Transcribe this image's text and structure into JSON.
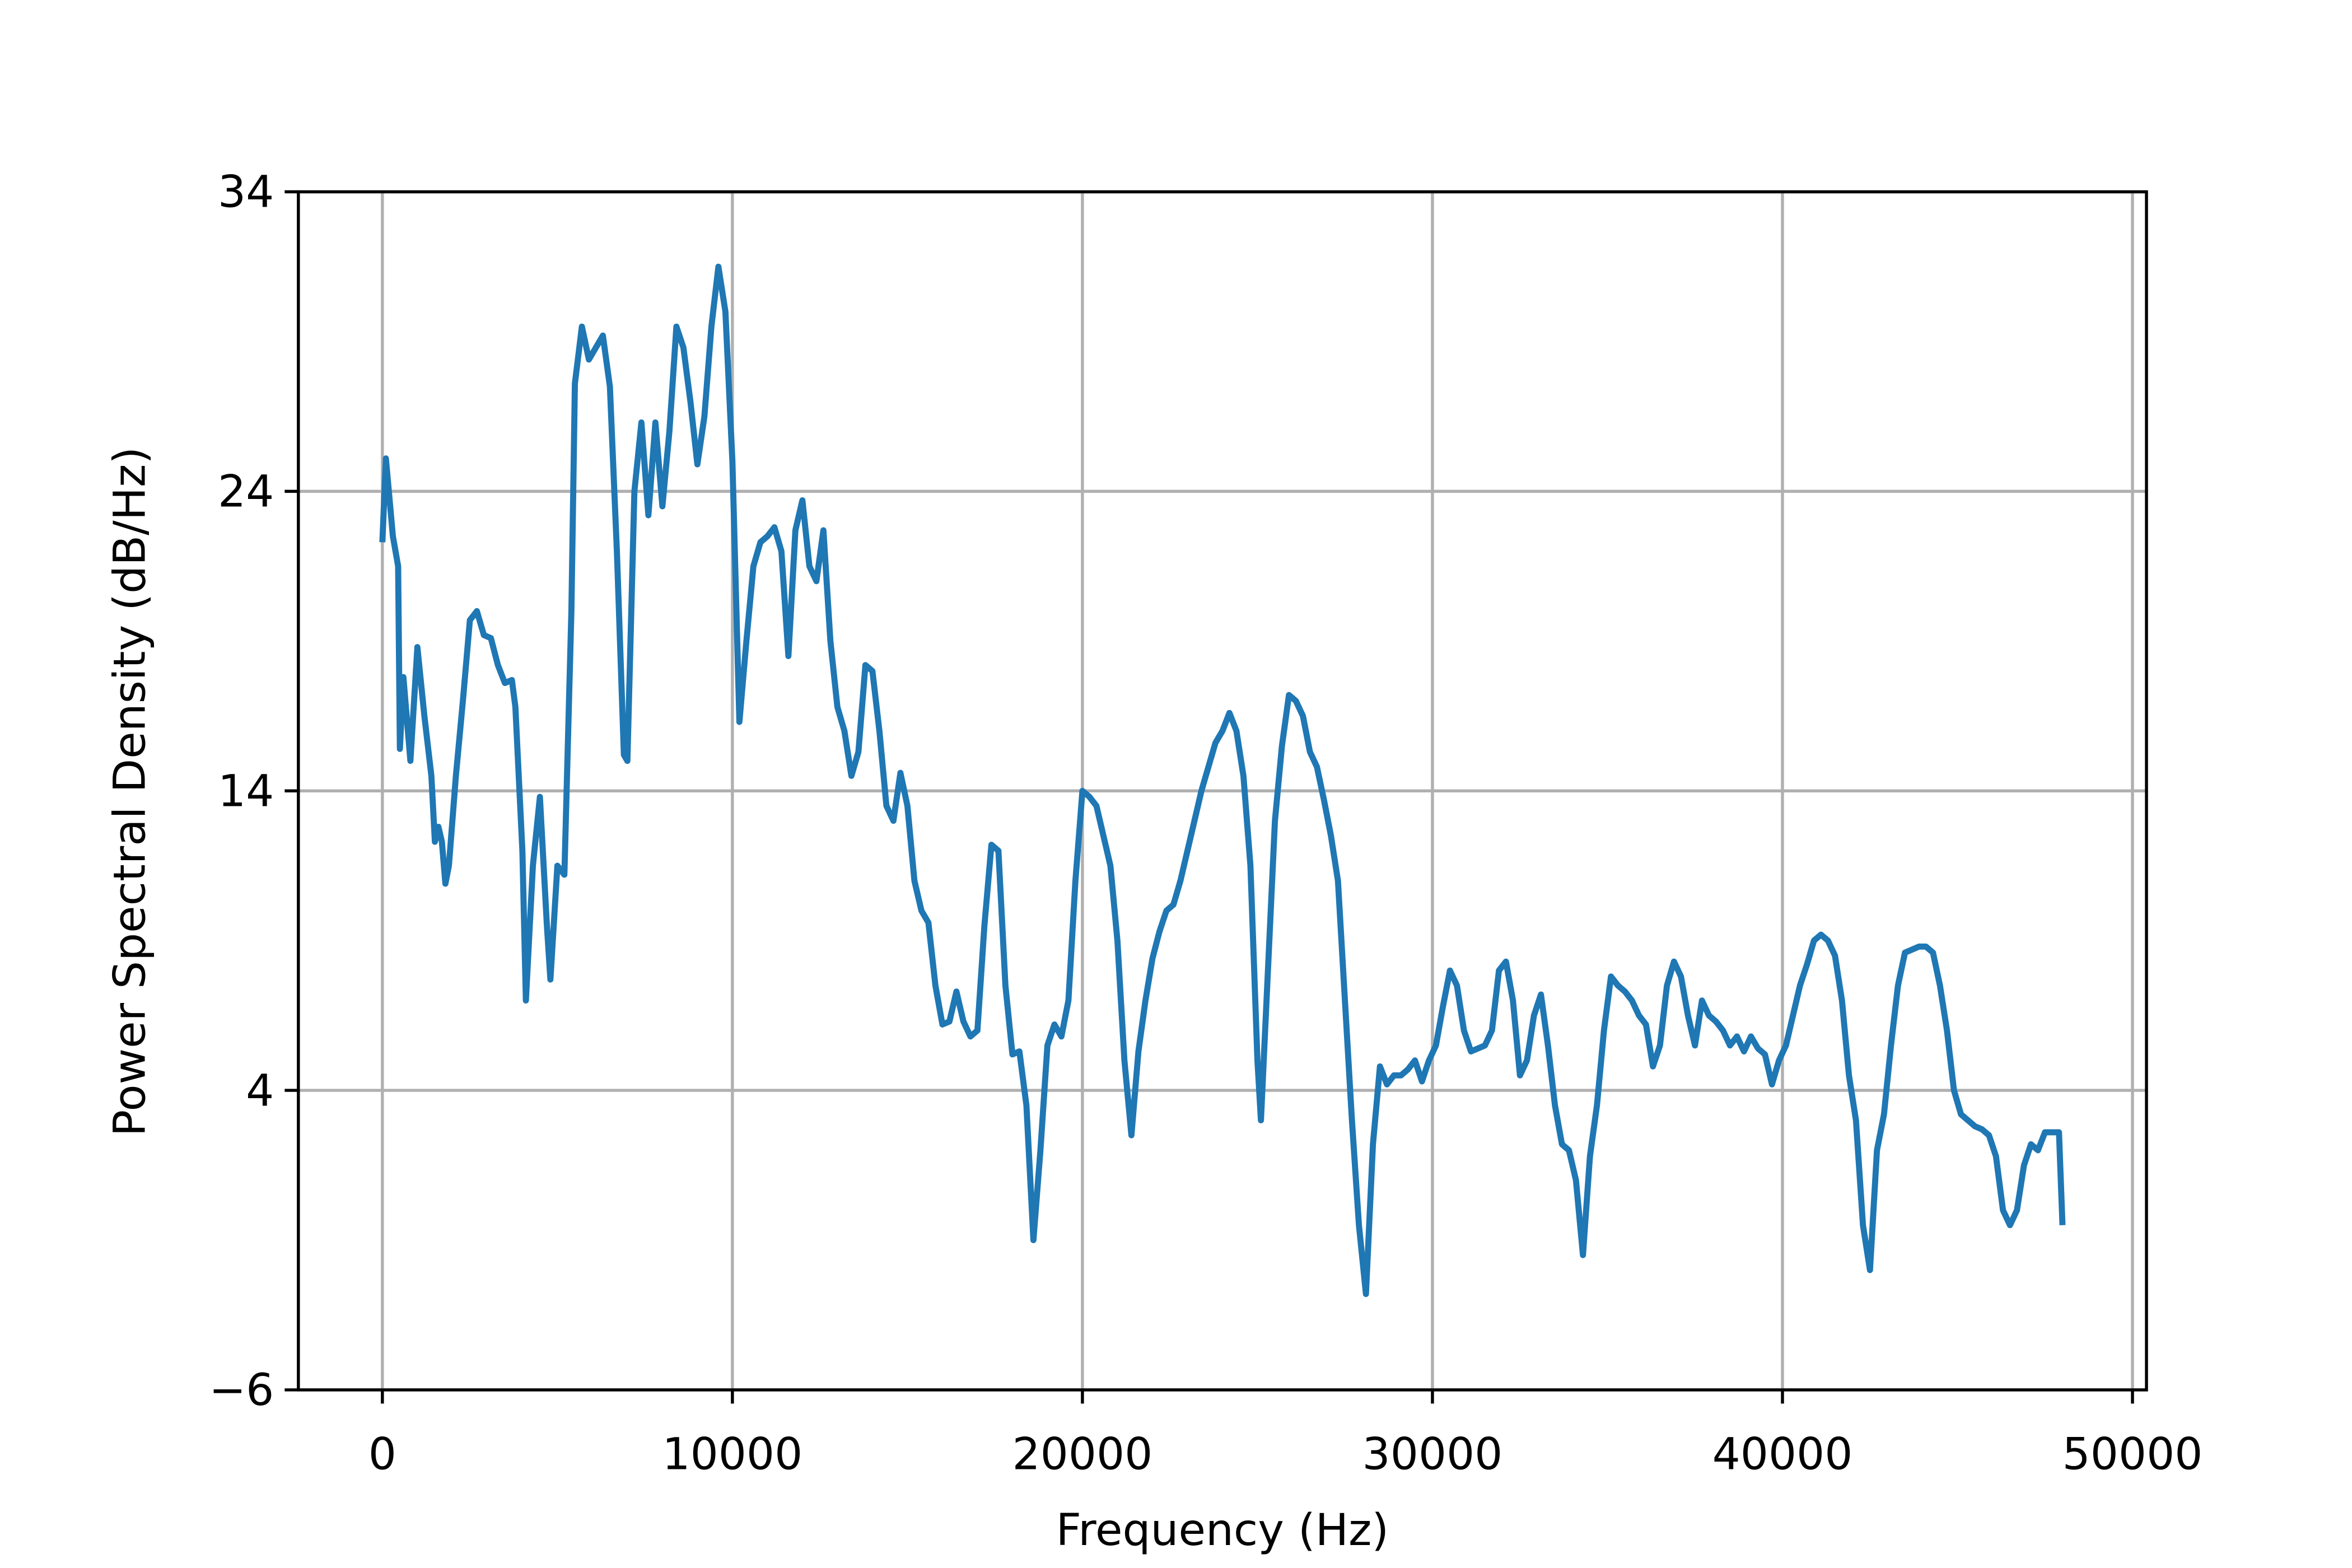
{
  "chart_data": {
    "type": "line",
    "xlabel": "Frequency (Hz)",
    "ylabel": "Power Spectral Density (dB/Hz)",
    "xlim": [
      -2400,
      50400
    ],
    "ylim": [
      -6,
      34
    ],
    "xticks": [
      0,
      10000,
      20000,
      30000,
      40000,
      50000
    ],
    "yticks": [
      {
        "value": -6,
        "label": "−6"
      },
      4,
      14,
      24,
      34
    ],
    "grid": true,
    "series": [
      {
        "color": "#1f77b4",
        "x": [
          0,
          100,
          300,
          450,
          500,
          600,
          800,
          1000,
          1200,
          1400,
          1500,
          1600,
          1700,
          1800,
          1900,
          2100,
          2300,
          2500,
          2700,
          2900,
          3100,
          3300,
          3500,
          3700,
          3800,
          4000,
          4100,
          4300,
          4500,
          4700,
          4800,
          5000,
          5200,
          5400,
          5500,
          5700,
          5900,
          6100,
          6300,
          6500,
          6700,
          6900,
          7000,
          7200,
          7400,
          7600,
          7800,
          8000,
          8200,
          8400,
          8600,
          8800,
          9000,
          9200,
          9400,
          9600,
          9800,
          10000,
          10200,
          10400,
          10600,
          10800,
          11000,
          11200,
          11400,
          11600,
          11800,
          12000,
          12200,
          12400,
          12600,
          12800,
          13000,
          13200,
          13400,
          13600,
          13800,
          14000,
          14200,
          14400,
          14600,
          14800,
          15000,
          15200,
          15400,
          15600,
          15800,
          16000,
          16200,
          16400,
          16600,
          16800,
          17000,
          17200,
          17400,
          17600,
          17800,
          18000,
          18200,
          18400,
          18600,
          18800,
          19000,
          19200,
          19400,
          19600,
          19800,
          20000,
          20200,
          20400,
          20600,
          20800,
          21000,
          21200,
          21400,
          21600,
          21800,
          22000,
          22200,
          22400,
          22600,
          22800,
          23000,
          23200,
          23400,
          23600,
          23800,
          24000,
          24200,
          24400,
          24600,
          24800,
          25000,
          25100,
          25300,
          25500,
          25700,
          25900,
          26100,
          26300,
          26500,
          26700,
          26900,
          27100,
          27300,
          27500,
          27700,
          27900,
          28100,
          28300,
          28500,
          28700,
          28900,
          29100,
          29300,
          29500,
          29700,
          29900,
          30100,
          30300,
          30500,
          30700,
          30900,
          31100,
          31300,
          31500,
          31700,
          31900,
          32100,
          32300,
          32500,
          32700,
          32900,
          33100,
          33300,
          33500,
          33700,
          33900,
          34100,
          34300,
          34500,
          34700,
          34900,
          35100,
          35300,
          35500,
          35700,
          35900,
          36100,
          36300,
          36500,
          36700,
          36900,
          37100,
          37300,
          37500,
          37700,
          37900,
          38100,
          38300,
          38500,
          38700,
          38900,
          39100,
          39300,
          39500,
          39700,
          39900,
          40100,
          40300,
          40500,
          40700,
          40900,
          41100,
          41300,
          41500,
          41700,
          41900,
          42100,
          42300,
          42500,
          42700,
          42900,
          43100,
          43300,
          43500,
          43700,
          43900,
          44100,
          44300,
          44500,
          44700,
          44900,
          45100,
          45300,
          45500,
          45700,
          45900,
          46100,
          46300,
          46500,
          46700,
          46900,
          47100,
          47300,
          47500,
          47700,
          47900,
          48000
        ],
        "values": [
          22.3,
          25.1,
          22.5,
          21.5,
          15.4,
          17.8,
          15.0,
          18.8,
          16.5,
          14.5,
          12.3,
          12.8,
          12.3,
          10.9,
          11.5,
          14.5,
          17.0,
          19.7,
          20.0,
          19.2,
          19.1,
          18.2,
          17.6,
          17.7,
          16.8,
          12.0,
          7.0,
          11.5,
          13.8,
          9.5,
          7.7,
          11.5,
          11.2,
          20.0,
          27.6,
          29.5,
          28.4,
          28.8,
          29.2,
          27.5,
          22.0,
          15.2,
          15.0,
          24.0,
          26.3,
          23.2,
          26.3,
          23.5,
          26.0,
          29.5,
          28.8,
          27.0,
          24.9,
          26.5,
          29.5,
          31.5,
          30.0,
          25.0,
          16.3,
          19.0,
          21.5,
          22.3,
          22.5,
          22.8,
          22.0,
          18.5,
          22.7,
          23.7,
          21.5,
          21.0,
          22.7,
          19.0,
          16.8,
          16.0,
          14.5,
          15.3,
          18.2,
          18.0,
          16.0,
          13.5,
          13.0,
          14.6,
          13.5,
          11.0,
          10.0,
          9.6,
          7.5,
          6.2,
          6.3,
          7.3,
          6.3,
          5.8,
          6.0,
          9.5,
          12.2,
          12.0,
          7.5,
          5.2,
          5.3,
          3.5,
          -1.0,
          2.0,
          5.5,
          6.2,
          5.8,
          7.0,
          11.0,
          14.0,
          13.8,
          13.5,
          12.5,
          11.5,
          9.0,
          5.0,
          2.5,
          5.3,
          7.0,
          8.4,
          9.3,
          10.0,
          10.2,
          11.0,
          12.0,
          13.0,
          14.0,
          14.8,
          15.6,
          16.0,
          16.6,
          16.0,
          14.5,
          11.5,
          5.0,
          3.0,
          8.0,
          13.0,
          15.5,
          17.2,
          17.0,
          16.5,
          15.3,
          14.8,
          13.7,
          12.5,
          11.0,
          7.0,
          3.0,
          -0.5,
          -2.8,
          2.2,
          4.8,
          4.2,
          4.5,
          4.5,
          4.7,
          5.0,
          4.3,
          5.0,
          5.5,
          6.8,
          8.0,
          7.5,
          6.0,
          5.3,
          5.4,
          5.5,
          6.0,
          8.0,
          8.3,
          7.0,
          4.5,
          5.0,
          6.5,
          7.2,
          5.5,
          3.5,
          2.2,
          2.0,
          1.0,
          -1.5,
          1.8,
          3.5,
          6.0,
          7.8,
          7.5,
          7.3,
          7.0,
          6.5,
          6.2,
          4.8,
          5.5,
          7.5,
          8.3,
          7.8,
          6.5,
          5.5,
          7.0,
          6.5,
          6.3,
          6.0,
          5.5,
          5.8,
          5.3,
          5.8,
          5.4,
          5.2,
          4.2,
          5.0,
          5.5,
          6.5,
          7.5,
          8.2,
          9.0,
          9.2,
          9.0,
          8.5,
          7.0,
          4.5,
          3.0,
          -0.5,
          -2.0,
          2.0,
          3.2,
          5.5,
          7.5,
          8.6,
          8.7,
          8.8,
          8.8,
          8.6,
          7.5,
          6.0,
          4.0,
          3.2,
          3.0,
          2.8,
          2.7,
          2.5,
          1.8,
          0.0,
          -0.5,
          0.0,
          1.5,
          2.2,
          2.0,
          2.6,
          2.6,
          2.6,
          -0.5
        ]
      }
    ]
  }
}
